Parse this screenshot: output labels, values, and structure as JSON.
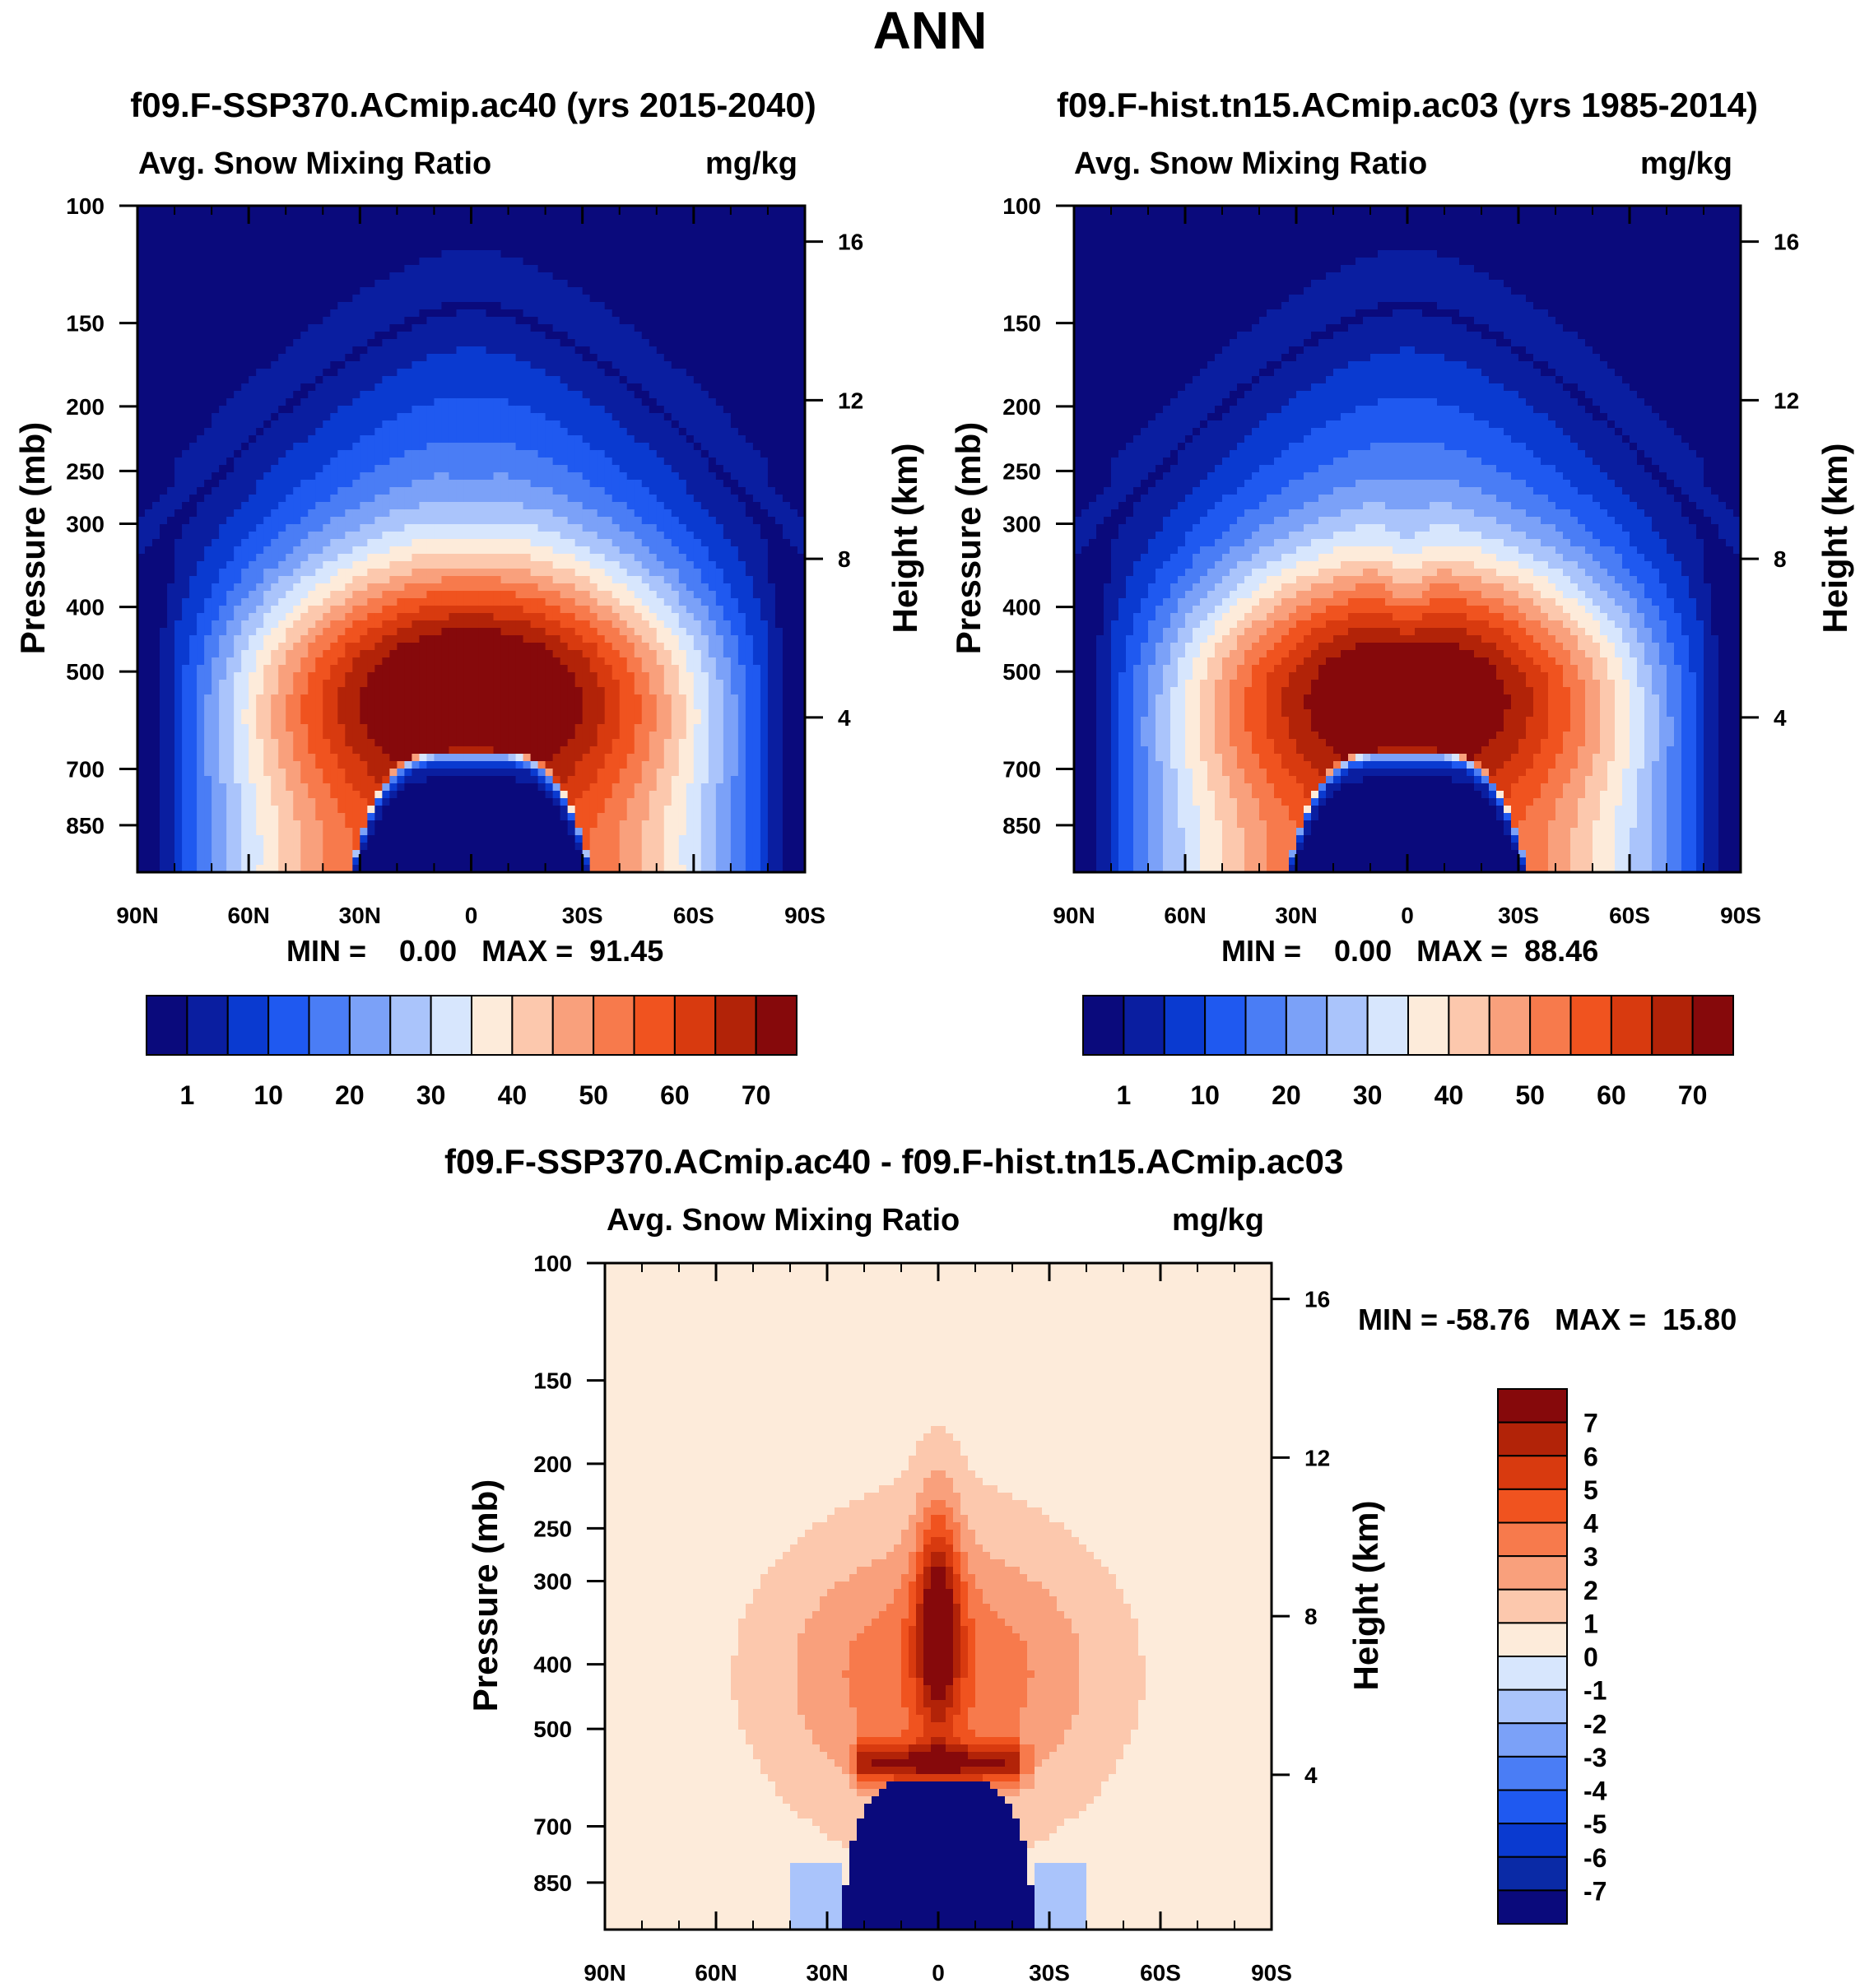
{
  "page": {
    "title": "ANN"
  },
  "colors": {
    "abs_scale": [
      "#0a0a7c",
      "#0a1ea0",
      "#0a3ad0",
      "#1f59f0",
      "#4a7df5",
      "#7ba1f8",
      "#aac4fb",
      "#d7e6fd",
      "#fdebda",
      "#fcc8ad",
      "#f9a07c",
      "#f77a4c",
      "#f0531f",
      "#d83a0f",
      "#b22308",
      "#86090b"
    ],
    "diff_scale": [
      "#0a0a7c",
      "#0a2aa6",
      "#0a3ad0",
      "#1f59f0",
      "#4a7df5",
      "#7ba1f8",
      "#aac4fb",
      "#d7e6fd",
      "#fdebda",
      "#fcc8ad",
      "#f9a07c",
      "#f77a4c",
      "#f0531f",
      "#d83a0f",
      "#b22308",
      "#86090b"
    ],
    "frame": "#000000"
  },
  "chart_data": [
    {
      "type": "heatmap",
      "title": "f09.F-SSP370.ACmip.ac40 (yrs 2015-2040)",
      "left_label": "Avg. Snow Mixing Ratio",
      "right_label": "mg/kg",
      "ylabel": "Pressure (mb)",
      "y2label": "Height (km)",
      "x_ticks": [
        "90N",
        "60N",
        "30N",
        "0",
        "30S",
        "60S",
        "90S"
      ],
      "y_ticks": [
        "100",
        "150",
        "200",
        "250",
        "300",
        "400",
        "500",
        "700",
        "850"
      ],
      "y_tick_values": [
        100,
        150,
        200,
        250,
        300,
        400,
        500,
        700,
        850
      ],
      "y2_ticks": [
        "16",
        "12",
        "8",
        "4"
      ],
      "y2_tick_values": [
        16,
        12,
        8,
        4
      ],
      "ylim": [
        100,
        1000
      ],
      "xlim": [
        90,
        -90
      ],
      "min_max_text": "MIN =    0.00   MAX =  91.45",
      "min": 0.0,
      "max": 91.45,
      "colorbar_labels": [
        "1",
        "10",
        "20",
        "30",
        "40",
        "50",
        "60",
        "70"
      ],
      "colorbar_levels": [
        1,
        10,
        20,
        30,
        40,
        50,
        60,
        70
      ]
    },
    {
      "type": "heatmap",
      "title": "f09.F-hist.tn15.ACmip.ac03 (yrs 1985-2014)",
      "left_label": "Avg. Snow Mixing Ratio",
      "right_label": "mg/kg",
      "ylabel": "Pressure (mb)",
      "y2label": "Height (km)",
      "x_ticks": [
        "90N",
        "60N",
        "30N",
        "0",
        "30S",
        "60S",
        "90S"
      ],
      "y_ticks": [
        "100",
        "150",
        "200",
        "250",
        "300",
        "400",
        "500",
        "700",
        "850"
      ],
      "y_tick_values": [
        100,
        150,
        200,
        250,
        300,
        400,
        500,
        700,
        850
      ],
      "y2_ticks": [
        "16",
        "12",
        "8",
        "4"
      ],
      "y2_tick_values": [
        16,
        12,
        8,
        4
      ],
      "ylim": [
        100,
        1000
      ],
      "xlim": [
        90,
        -90
      ],
      "min_max_text": "MIN =    0.00   MAX =  88.46",
      "min": 0.0,
      "max": 88.46,
      "colorbar_labels": [
        "1",
        "10",
        "20",
        "30",
        "40",
        "50",
        "60",
        "70"
      ],
      "colorbar_levels": [
        1,
        10,
        20,
        30,
        40,
        50,
        60,
        70
      ]
    },
    {
      "type": "heatmap",
      "title": "f09.F-SSP370.ACmip.ac40 - f09.F-hist.tn15.ACmip.ac03",
      "left_label": "Avg. Snow Mixing Ratio",
      "right_label": "mg/kg",
      "ylabel": "Pressure (mb)",
      "y2label": "Height (km)",
      "x_ticks": [
        "90N",
        "60N",
        "30N",
        "0",
        "30S",
        "60S",
        "90S"
      ],
      "y_ticks": [
        "100",
        "150",
        "200",
        "250",
        "300",
        "400",
        "500",
        "700",
        "850"
      ],
      "y_tick_values": [
        100,
        150,
        200,
        250,
        300,
        400,
        500,
        700,
        850
      ],
      "y2_ticks": [
        "16",
        "12",
        "8",
        "4"
      ],
      "y2_tick_values": [
        16,
        12,
        8,
        4
      ],
      "ylim": [
        100,
        1000
      ],
      "xlim": [
        90,
        -90
      ],
      "min_max_text": "MIN = -58.76   MAX =  15.80",
      "min": -58.76,
      "max": 15.8,
      "colorbar_labels": [
        "7",
        "6",
        "5",
        "4",
        "3",
        "2",
        "1",
        "0",
        "-1",
        "-2",
        "-3",
        "-4",
        "-5",
        "-6",
        "-7"
      ],
      "colorbar_levels": [
        7,
        6,
        5,
        4,
        3,
        2,
        1,
        0,
        -1,
        -2,
        -3,
        -4,
        -5,
        -6,
        -7
      ]
    }
  ]
}
